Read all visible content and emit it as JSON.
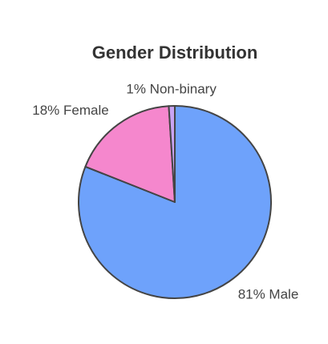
{
  "chart_data": {
    "type": "pie",
    "title": "Gender Distribution",
    "values": [
      81,
      18,
      1
    ],
    "value_labels": [
      "81% Male",
      "18% Female",
      "1% Non-binary"
    ],
    "colors": [
      "#6ea2fb",
      "#f587cd",
      "#c9a4f2"
    ]
  }
}
